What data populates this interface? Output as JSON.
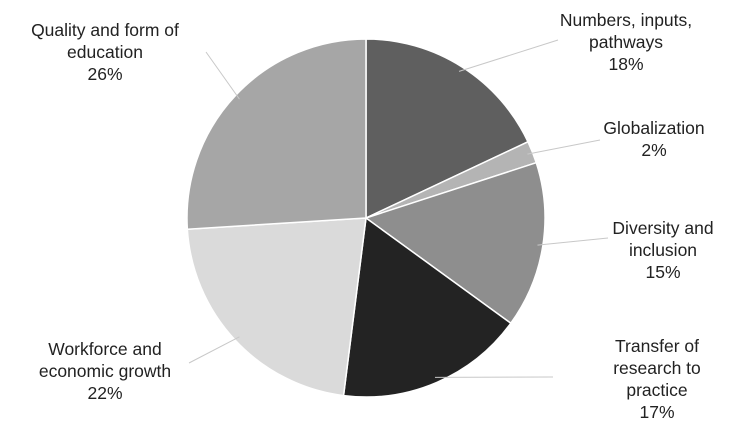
{
  "chart_data": {
    "type": "pie",
    "title": "",
    "start_angle_deg": 90,
    "direction": "clockwise",
    "legend": "none",
    "slices": [
      {
        "name": "Numbers, inputs, pathways",
        "label_lines": [
          "Numbers, inputs,",
          "pathways"
        ],
        "value": 18,
        "value_label": "18%",
        "color": "#5f5f5f"
      },
      {
        "name": "Globalization",
        "label_lines": [
          "Globalization"
        ],
        "value": 2,
        "value_label": "2%",
        "color": "#b4b4b4"
      },
      {
        "name": "Diversity and inclusion",
        "label_lines": [
          "Diversity and",
          "inclusion"
        ],
        "value": 15,
        "value_label": "15%",
        "color": "#8e8e8e"
      },
      {
        "name": "Transfer of research to practice",
        "label_lines": [
          "Transfer of",
          "research to",
          "practice"
        ],
        "value": 17,
        "value_label": "17%",
        "color": "#232323"
      },
      {
        "name": "Workforce and economic growth",
        "label_lines": [
          "Workforce and",
          "economic growth"
        ],
        "value": 22,
        "value_label": "22%",
        "color": "#dadada"
      },
      {
        "name": "Quality and form of education",
        "label_lines": [
          "Quality and form of",
          "education"
        ],
        "value": 26,
        "value_label": "26%",
        "color": "#a6a6a6"
      }
    ]
  }
}
